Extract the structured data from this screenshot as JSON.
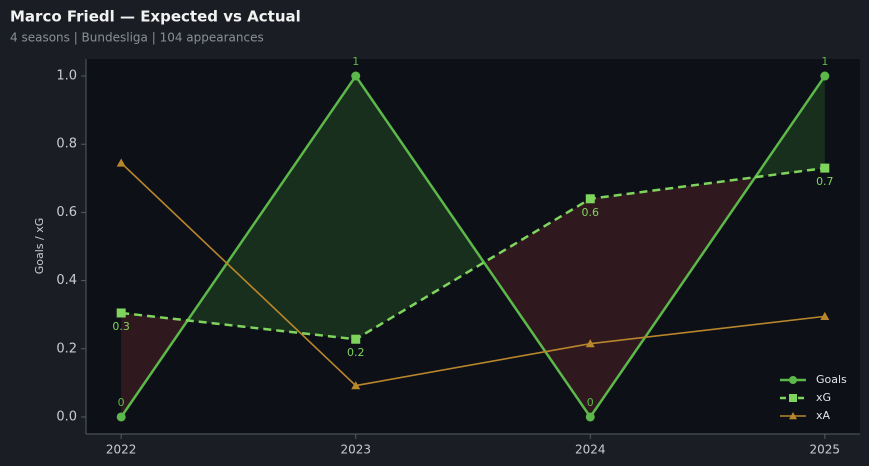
{
  "chart_data": {
    "type": "line",
    "title": "Marco Friedl — Expected vs Actual",
    "subtitle": "4 seasons | Bundesliga | 104 appearances",
    "y_label": "Goals / xG",
    "x": [
      2022,
      2023,
      2024,
      2025
    ],
    "xlim": [
      2021.85,
      2025.15
    ],
    "xticks": [
      2022,
      2023,
      2024,
      2025
    ],
    "ylim": [
      -0.05,
      1.05
    ],
    "yticks": [
      {
        "value": 0,
        "label": "0.0"
      },
      0.2,
      0.4,
      0.6,
      0.8,
      {
        "value": 1,
        "label": "1.0"
      }
    ],
    "legend": "lower right",
    "series": [
      {
        "name": "Goals",
        "color": "#5cb84a",
        "marker": "circle",
        "linestyle": "solid",
        "width": 2.5,
        "label_side": "above",
        "values": [
          0,
          1,
          0,
          1
        ]
      },
      {
        "name": "xG",
        "color": "#7fd45e",
        "marker": "square",
        "linestyle": "dashed",
        "width": 2.5,
        "label_side": "below",
        "values": [
          0.305,
          0.228,
          0.64,
          0.73
        ],
        "value_labels": [
          "0.3",
          "0.2",
          "0.6",
          "0.7"
        ]
      },
      {
        "name": "xA",
        "color": "#b8862b",
        "marker": "triangle",
        "linestyle": "solid",
        "width": 1.6,
        "values": [
          0.745,
          0.092,
          0.215,
          0.295
        ]
      }
    ]
  }
}
